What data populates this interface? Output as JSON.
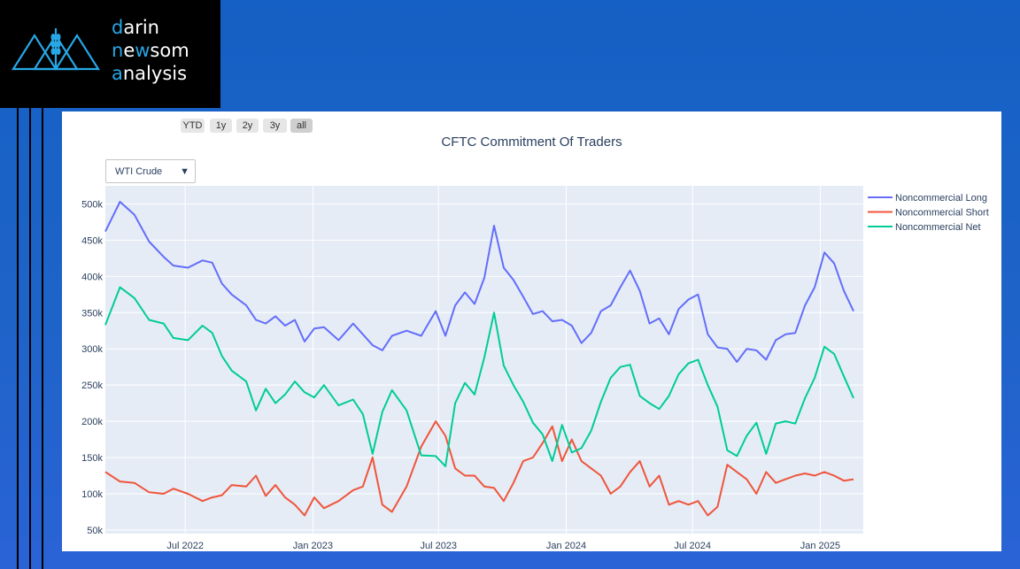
{
  "brand": {
    "line1_first": "d",
    "line1_rest": "arin",
    "line2_a": "n",
    "line2_b": "e",
    "line2_c": "w",
    "line2_d": "som",
    "line3_first": "a",
    "line3_rest": "nalysis",
    "accent": "#27a7e6"
  },
  "range_buttons": [
    "YTD",
    "1y",
    "2y",
    "3y",
    "all"
  ],
  "selector": {
    "value": "WTI Crude"
  },
  "chart_data": {
    "type": "line",
    "title": "CFTC Commitment Of Traders",
    "xlabel": "",
    "ylabel": "",
    "x_ticks": [
      "Jul 2022",
      "Jan 2023",
      "Jul 2023",
      "Jan 2024",
      "Jul 2024",
      "Jan 2025"
    ],
    "y_ticks": [
      "50k",
      "100k",
      "150k",
      "200k",
      "250k",
      "300k",
      "350k",
      "400k",
      "450k",
      "500k"
    ],
    "xlim": [
      "2022-03-08",
      "2025-03-04"
    ],
    "ylim": [
      45000,
      525000
    ],
    "grid": true,
    "legend": "top-right",
    "series": [
      {
        "name": "Noncommercial Long",
        "color": "#636efa",
        "points": [
          [
            "2022-03-08",
            462000
          ],
          [
            "2022-03-29",
            503000
          ],
          [
            "2022-04-19",
            485000
          ],
          [
            "2022-05-10",
            448000
          ],
          [
            "2022-05-31",
            427000
          ],
          [
            "2022-06-14",
            415000
          ],
          [
            "2022-07-05",
            412000
          ],
          [
            "2022-07-26",
            422000
          ],
          [
            "2022-08-09",
            419000
          ],
          [
            "2022-08-23",
            390000
          ],
          [
            "2022-09-06",
            375000
          ],
          [
            "2022-09-27",
            360000
          ],
          [
            "2022-10-11",
            340000
          ],
          [
            "2022-10-25",
            335000
          ],
          [
            "2022-11-08",
            345000
          ],
          [
            "2022-11-22",
            332000
          ],
          [
            "2022-12-06",
            340000
          ],
          [
            "2022-12-20",
            310000
          ],
          [
            "2023-01-03",
            328000
          ],
          [
            "2023-01-17",
            330000
          ],
          [
            "2023-02-07",
            312000
          ],
          [
            "2023-02-28",
            335000
          ],
          [
            "2023-03-14",
            320000
          ],
          [
            "2023-03-28",
            305000
          ],
          [
            "2023-04-11",
            298000
          ],
          [
            "2023-04-25",
            318000
          ],
          [
            "2023-05-16",
            325000
          ],
          [
            "2023-06-06",
            318000
          ],
          [
            "2023-06-27",
            352000
          ],
          [
            "2023-07-11",
            318000
          ],
          [
            "2023-07-25",
            360000
          ],
          [
            "2023-08-08",
            378000
          ],
          [
            "2023-08-22",
            362000
          ],
          [
            "2023-09-05",
            398000
          ],
          [
            "2023-09-19",
            470000
          ],
          [
            "2023-10-03",
            412000
          ],
          [
            "2023-10-17",
            395000
          ],
          [
            "2023-10-31",
            372000
          ],
          [
            "2023-11-14",
            348000
          ],
          [
            "2023-11-28",
            352000
          ],
          [
            "2023-12-12",
            338000
          ],
          [
            "2023-12-26",
            340000
          ],
          [
            "2024-01-09",
            332000
          ],
          [
            "2024-01-23",
            308000
          ],
          [
            "2024-02-06",
            322000
          ],
          [
            "2024-02-20",
            352000
          ],
          [
            "2024-03-05",
            360000
          ],
          [
            "2024-03-19",
            385000
          ],
          [
            "2024-04-02",
            408000
          ],
          [
            "2024-04-16",
            380000
          ],
          [
            "2024-04-30",
            335000
          ],
          [
            "2024-05-14",
            342000
          ],
          [
            "2024-05-28",
            320000
          ],
          [
            "2024-06-11",
            355000
          ],
          [
            "2024-06-25",
            368000
          ],
          [
            "2024-07-09",
            375000
          ],
          [
            "2024-07-23",
            320000
          ],
          [
            "2024-08-06",
            302000
          ],
          [
            "2024-08-20",
            300000
          ],
          [
            "2024-09-03",
            282000
          ],
          [
            "2024-09-17",
            300000
          ],
          [
            "2024-10-01",
            298000
          ],
          [
            "2024-10-15",
            285000
          ],
          [
            "2024-10-29",
            312000
          ],
          [
            "2024-11-12",
            320000
          ],
          [
            "2024-11-26",
            322000
          ],
          [
            "2024-12-10",
            360000
          ],
          [
            "2024-12-24",
            385000
          ],
          [
            "2025-01-07",
            433000
          ],
          [
            "2025-01-21",
            418000
          ],
          [
            "2025-02-04",
            380000
          ],
          [
            "2025-02-18",
            352000
          ]
        ]
      },
      {
        "name": "Noncommercial Short",
        "color": "#ef553b",
        "points": [
          [
            "2022-03-08",
            130000
          ],
          [
            "2022-03-29",
            117000
          ],
          [
            "2022-04-19",
            115000
          ],
          [
            "2022-05-10",
            102000
          ],
          [
            "2022-05-31",
            100000
          ],
          [
            "2022-06-14",
            107000
          ],
          [
            "2022-07-05",
            100000
          ],
          [
            "2022-07-26",
            90000
          ],
          [
            "2022-08-09",
            95000
          ],
          [
            "2022-08-23",
            98000
          ],
          [
            "2022-09-06",
            112000
          ],
          [
            "2022-09-27",
            110000
          ],
          [
            "2022-10-11",
            125000
          ],
          [
            "2022-10-25",
            97000
          ],
          [
            "2022-11-08",
            112000
          ],
          [
            "2022-11-22",
            95000
          ],
          [
            "2022-12-06",
            85000
          ],
          [
            "2022-12-20",
            70000
          ],
          [
            "2023-01-03",
            95000
          ],
          [
            "2023-01-17",
            80000
          ],
          [
            "2023-02-07",
            90000
          ],
          [
            "2023-02-28",
            105000
          ],
          [
            "2023-03-14",
            110000
          ],
          [
            "2023-03-28",
            150000
          ],
          [
            "2023-04-11",
            85000
          ],
          [
            "2023-04-25",
            75000
          ],
          [
            "2023-05-16",
            110000
          ],
          [
            "2023-06-06",
            165000
          ],
          [
            "2023-06-27",
            200000
          ],
          [
            "2023-07-11",
            180000
          ],
          [
            "2023-07-25",
            135000
          ],
          [
            "2023-08-08",
            125000
          ],
          [
            "2023-08-22",
            125000
          ],
          [
            "2023-09-05",
            110000
          ],
          [
            "2023-09-19",
            108000
          ],
          [
            "2023-10-03",
            90000
          ],
          [
            "2023-10-17",
            115000
          ],
          [
            "2023-10-31",
            145000
          ],
          [
            "2023-11-14",
            150000
          ],
          [
            "2023-11-28",
            170000
          ],
          [
            "2023-12-12",
            193000
          ],
          [
            "2023-12-26",
            145000
          ],
          [
            "2024-01-09",
            175000
          ],
          [
            "2024-01-23",
            145000
          ],
          [
            "2024-02-06",
            135000
          ],
          [
            "2024-02-20",
            125000
          ],
          [
            "2024-03-05",
            100000
          ],
          [
            "2024-03-19",
            110000
          ],
          [
            "2024-04-02",
            130000
          ],
          [
            "2024-04-16",
            145000
          ],
          [
            "2024-04-30",
            110000
          ],
          [
            "2024-05-14",
            125000
          ],
          [
            "2024-05-28",
            85000
          ],
          [
            "2024-06-11",
            90000
          ],
          [
            "2024-06-25",
            85000
          ],
          [
            "2024-07-09",
            90000
          ],
          [
            "2024-07-23",
            70000
          ],
          [
            "2024-08-06",
            82000
          ],
          [
            "2024-08-20",
            140000
          ],
          [
            "2024-09-03",
            130000
          ],
          [
            "2024-09-17",
            120000
          ],
          [
            "2024-10-01",
            100000
          ],
          [
            "2024-10-15",
            130000
          ],
          [
            "2024-10-29",
            115000
          ],
          [
            "2024-11-12",
            120000
          ],
          [
            "2024-11-26",
            125000
          ],
          [
            "2024-12-10",
            128000
          ],
          [
            "2024-12-24",
            125000
          ],
          [
            "2025-01-07",
            130000
          ],
          [
            "2025-01-21",
            125000
          ],
          [
            "2025-02-04",
            118000
          ],
          [
            "2025-02-18",
            120000
          ]
        ]
      },
      {
        "name": "Noncommercial Net",
        "color": "#00cc96",
        "points": [
          [
            "2022-03-08",
            333000
          ],
          [
            "2022-03-29",
            385000
          ],
          [
            "2022-04-19",
            370000
          ],
          [
            "2022-05-10",
            340000
          ],
          [
            "2022-05-31",
            335000
          ],
          [
            "2022-06-14",
            315000
          ],
          [
            "2022-07-05",
            312000
          ],
          [
            "2022-07-26",
            332000
          ],
          [
            "2022-08-09",
            322000
          ],
          [
            "2022-08-23",
            290000
          ],
          [
            "2022-09-06",
            270000
          ],
          [
            "2022-09-27",
            255000
          ],
          [
            "2022-10-11",
            215000
          ],
          [
            "2022-10-25",
            245000
          ],
          [
            "2022-11-08",
            225000
          ],
          [
            "2022-11-22",
            237000
          ],
          [
            "2022-12-06",
            255000
          ],
          [
            "2022-12-20",
            240000
          ],
          [
            "2023-01-03",
            233000
          ],
          [
            "2023-01-17",
            250000
          ],
          [
            "2023-02-07",
            222000
          ],
          [
            "2023-02-28",
            230000
          ],
          [
            "2023-03-14",
            210000
          ],
          [
            "2023-03-28",
            155000
          ],
          [
            "2023-04-11",
            213000
          ],
          [
            "2023-04-25",
            243000
          ],
          [
            "2023-05-16",
            215000
          ],
          [
            "2023-06-06",
            153000
          ],
          [
            "2023-06-27",
            152000
          ],
          [
            "2023-07-11",
            138000
          ],
          [
            "2023-07-25",
            225000
          ],
          [
            "2023-08-08",
            253000
          ],
          [
            "2023-08-22",
            237000
          ],
          [
            "2023-09-05",
            288000
          ],
          [
            "2023-09-19",
            350000
          ],
          [
            "2023-10-03",
            277000
          ],
          [
            "2023-10-17",
            250000
          ],
          [
            "2023-10-31",
            227000
          ],
          [
            "2023-11-14",
            198000
          ],
          [
            "2023-11-28",
            182000
          ],
          [
            "2023-12-12",
            145000
          ],
          [
            "2023-12-26",
            195000
          ],
          [
            "2024-01-09",
            157000
          ],
          [
            "2024-01-23",
            163000
          ],
          [
            "2024-02-06",
            187000
          ],
          [
            "2024-02-20",
            227000
          ],
          [
            "2024-03-05",
            260000
          ],
          [
            "2024-03-19",
            275000
          ],
          [
            "2024-04-02",
            278000
          ],
          [
            "2024-04-16",
            235000
          ],
          [
            "2024-04-30",
            225000
          ],
          [
            "2024-05-14",
            217000
          ],
          [
            "2024-05-28",
            235000
          ],
          [
            "2024-06-11",
            265000
          ],
          [
            "2024-06-25",
            280000
          ],
          [
            "2024-07-09",
            285000
          ],
          [
            "2024-07-23",
            250000
          ],
          [
            "2024-08-06",
            220000
          ],
          [
            "2024-08-20",
            160000
          ],
          [
            "2024-09-03",
            152000
          ],
          [
            "2024-09-17",
            180000
          ],
          [
            "2024-10-01",
            198000
          ],
          [
            "2024-10-15",
            155000
          ],
          [
            "2024-10-29",
            197000
          ],
          [
            "2024-11-12",
            200000
          ],
          [
            "2024-11-26",
            197000
          ],
          [
            "2024-12-10",
            232000
          ],
          [
            "2024-12-24",
            260000
          ],
          [
            "2025-01-07",
            303000
          ],
          [
            "2025-01-21",
            293000
          ],
          [
            "2025-02-04",
            262000
          ],
          [
            "2025-02-18",
            232000
          ]
        ]
      }
    ]
  }
}
